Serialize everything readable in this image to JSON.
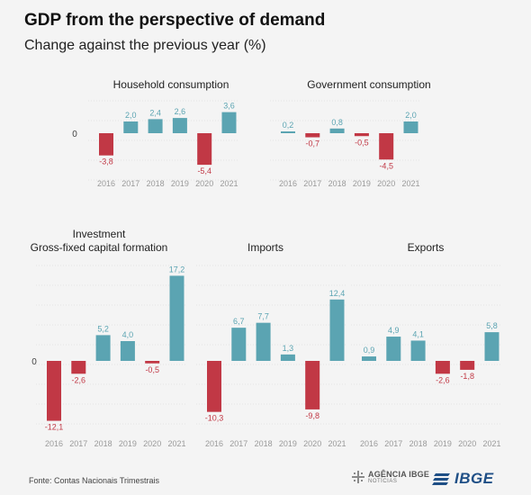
{
  "header": {
    "title": "GDP from the perspective of demand",
    "subtitle": "Change against the previous year (%)"
  },
  "footer": {
    "source": "Fonte: Contas Nacionais Trimestrais",
    "logo_agencia": "AGÊNCIA IBGE",
    "logo_agencia_sub": "NOTÍCIAS",
    "logo_ibge": "IBGE"
  },
  "colors": {
    "positive": "#5ba4b2",
    "negative": "#c13845",
    "tick": "#9a9a9a",
    "grid": "#d2d2d2"
  },
  "chart_data": [
    {
      "type": "bar",
      "title": "Household consumption",
      "categories": [
        "2016",
        "2017",
        "2018",
        "2019",
        "2020",
        "2021"
      ],
      "values": [
        -3.8,
        2.0,
        2.4,
        2.6,
        -5.4,
        3.6
      ],
      "labels": [
        "-3,8",
        "2,0",
        "2,4",
        "2,6",
        "-5,4",
        "3,6"
      ],
      "zero_label": "0"
    },
    {
      "type": "bar",
      "title": "Government consumption",
      "categories": [
        "2016",
        "2017",
        "2018",
        "2019",
        "2020",
        "2021"
      ],
      "values": [
        0.2,
        -0.7,
        0.8,
        -0.5,
        -4.5,
        2.0
      ],
      "labels": [
        "0,2",
        "-0,7",
        "0,8",
        "-0,5",
        "-4,5",
        "2,0"
      ],
      "zero_label": ""
    },
    {
      "type": "bar",
      "title": "Investment",
      "title2": "Gross-fixed capital formation",
      "categories": [
        "2016",
        "2017",
        "2018",
        "2019",
        "2020",
        "2021"
      ],
      "values": [
        -12.1,
        -2.6,
        5.2,
        4.0,
        -0.5,
        17.2
      ],
      "labels": [
        "-12,1",
        "-2,6",
        "5,2",
        "4,0",
        "-0,5",
        "17,2"
      ],
      "zero_label": "0"
    },
    {
      "type": "bar",
      "title": "Imports",
      "categories": [
        "2016",
        "2017",
        "2018",
        "2019",
        "2020",
        "2021"
      ],
      "values": [
        -10.3,
        6.7,
        7.7,
        1.3,
        -9.8,
        12.4
      ],
      "labels": [
        "-10,3",
        "6,7",
        "7,7",
        "1,3",
        "-9,8",
        "12,4"
      ],
      "zero_label": ""
    },
    {
      "type": "bar",
      "title": "Exports",
      "categories": [
        "2016",
        "2017",
        "2018",
        "2019",
        "2020",
        "2021"
      ],
      "values": [
        0.9,
        4.9,
        4.1,
        -2.6,
        -1.8,
        5.8
      ],
      "labels": [
        "0,9",
        "4,9",
        "4,1",
        "-2,6",
        "-1,8",
        "5,8"
      ],
      "zero_label": ""
    }
  ]
}
